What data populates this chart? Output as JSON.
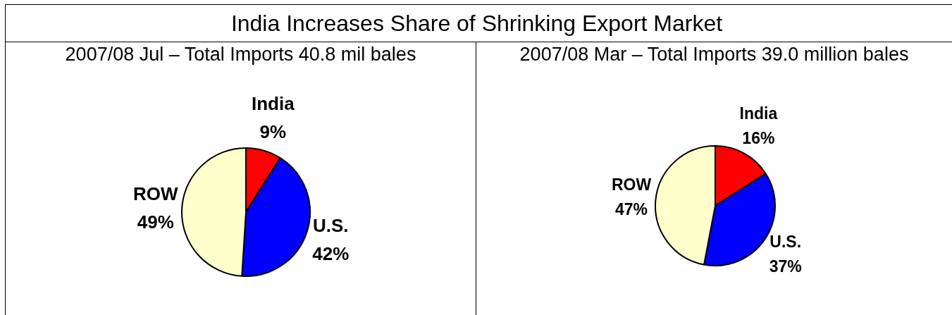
{
  "chart_data": [
    {
      "type": "pie",
      "title": "India Increases Share of Shrinking Export Market",
      "subtitle": "2007/08 Jul – Total Imports 40.8 mil bales",
      "categories": [
        "India",
        "U.S.",
        "ROW"
      ],
      "values": [
        9,
        42,
        49
      ],
      "value_labels": [
        "9%",
        "42%",
        "49%"
      ],
      "colors": [
        "#ff0000",
        "#0000ff",
        "#ffffcc"
      ],
      "legend": false
    },
    {
      "type": "pie",
      "subtitle": "2007/08 Mar – Total Imports 39.0 million bales",
      "categories": [
        "India",
        "U.S.",
        "ROW"
      ],
      "values": [
        16,
        37,
        47
      ],
      "value_labels": [
        "16%",
        "37%",
        "47%"
      ],
      "colors": [
        "#ff0000",
        "#0000ff",
        "#ffffcc"
      ],
      "legend": false
    }
  ]
}
